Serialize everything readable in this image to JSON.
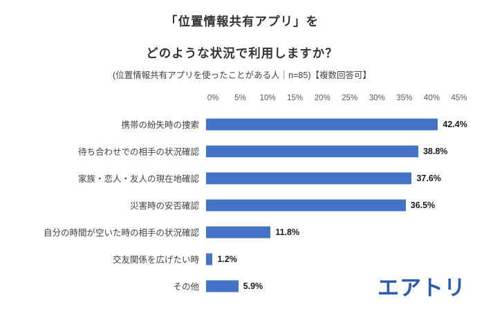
{
  "title_line1": "「位置情報共有アプリ」を",
  "title_line2": "どのような状況で利用しますか？",
  "subtitle": "(位置情報共有アプリを使ったことがある人｜n=85)【複数回答可】",
  "logo_text": "エアトリ",
  "colors": {
    "bar": "#4472C4",
    "logo": "#2B5DAD"
  },
  "chart_data": {
    "type": "bar",
    "orientation": "horizontal",
    "title": "「位置情報共有アプリ」を どのような状況で利用しますか？",
    "subtitle": "(位置情報共有アプリを使ったことがある人｜n=85)【複数回答可】",
    "categories": [
      "携帯の紛失時の捜索",
      "待ち合わせでの相手の状況確認",
      "家族・恋人・友人の現在地確認",
      "災害時の安否確認",
      "自分の時間が空いた時の相手の状況確認",
      "交友関係を広げたい時",
      "その他"
    ],
    "values": [
      42.4,
      38.8,
      37.6,
      36.5,
      11.8,
      1.2,
      5.9
    ],
    "value_labels": [
      "42.4%",
      "38.8%",
      "37.6%",
      "36.5%",
      "11.8%",
      "1.2%",
      "5.9%"
    ],
    "xlim": [
      0,
      45
    ],
    "x_ticks": [
      "0%",
      "5%",
      "10%",
      "15%",
      "20%",
      "25%",
      "30%",
      "35%",
      "40%",
      "45%"
    ],
    "grid": "off",
    "legend": "none",
    "bar_color": "#4472C4"
  }
}
